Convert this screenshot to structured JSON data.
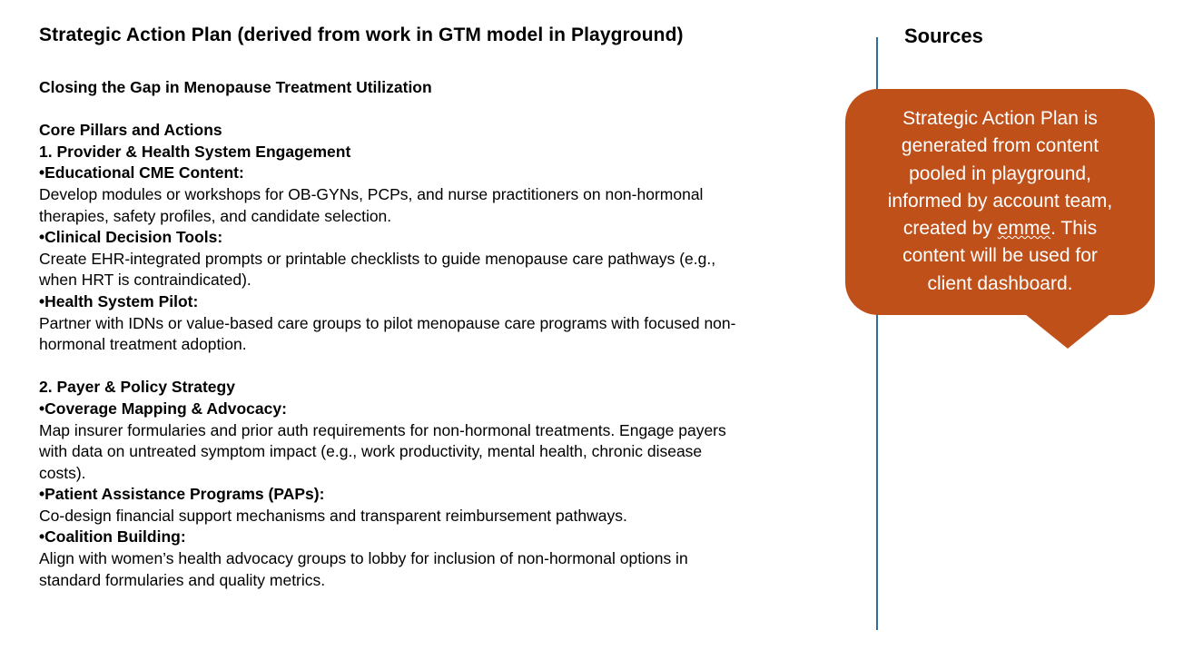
{
  "title": "Strategic Action Plan (derived from work in GTM model in Playground)",
  "plan": {
    "heading": "Closing the Gap in Menopause Treatment Utilization",
    "section_label": "Core Pillars and Actions",
    "pillar1": {
      "title": "1. Provider & Health System Engagement",
      "items": [
        {
          "label": "•Educational CME Content:",
          "lines": [
            "Develop modules or workshops for OB-GYNs, PCPs, and nurse practitioners on non-hormonal",
            "therapies, safety profiles, and candidate selection."
          ]
        },
        {
          "label": "•Clinical Decision Tools:",
          "lines": [
            "Create EHR-integrated prompts or printable checklists to guide menopause care pathways (e.g.,",
            "when HRT is contraindicated)."
          ]
        },
        {
          "label": "•Health System Pilot:",
          "lines": [
            "Partner with IDNs or value-based care groups to pilot menopause care programs with focused non-",
            "hormonal treatment adoption."
          ]
        }
      ]
    },
    "pillar2": {
      "title": "2. Payer & Policy Strategy",
      "items": [
        {
          "label": "•Coverage Mapping & Advocacy:",
          "lines": [
            "Map insurer formularies and prior auth requirements for non-hormonal treatments. Engage payers",
            "with data on untreated symptom impact (e.g., work productivity, mental health, chronic disease",
            "costs)."
          ]
        },
        {
          "label": "•Patient Assistance Programs (PAPs):",
          "lines": [
            "Co-design financial support mechanisms and transparent reimbursement pathways."
          ]
        },
        {
          "label": "•Coalition Building:",
          "lines": [
            "Align with women’s health advocacy groups to lobby for inclusion of non-hormonal options in",
            "standard formularies and quality metrics."
          ]
        }
      ]
    }
  },
  "sources": {
    "title": "Sources",
    "callout": {
      "line1": "Strategic Action Plan is",
      "line2": "generated from content",
      "line3": "pooled in playground,",
      "line4": "informed by account team,",
      "line5_pre": "created by ",
      "line5_word": "emme",
      "line5_post": ". This",
      "line6": "content will be used for",
      "line7": "client dashboard."
    }
  },
  "colors": {
    "callout_bg": "#c0501a",
    "divider": "#2e6e9e",
    "text": "#000000"
  }
}
